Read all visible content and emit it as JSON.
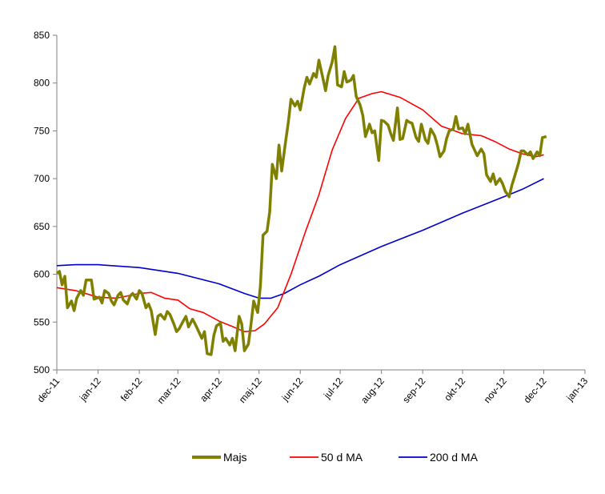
{
  "chart_data": {
    "type": "line",
    "title": "",
    "xlabel": "",
    "ylabel": "",
    "ylim": [
      500,
      850
    ],
    "yticks": [
      500,
      550,
      600,
      650,
      700,
      750,
      800,
      850
    ],
    "xlim": [
      "2011-12-01",
      "2013-01-01"
    ],
    "xticks": [
      {
        "date": "2011-12-01",
        "label": "dec-11"
      },
      {
        "date": "2012-01-01",
        "label": "jan-12"
      },
      {
        "date": "2012-02-01",
        "label": "feb-12"
      },
      {
        "date": "2012-03-01",
        "label": "mar-12"
      },
      {
        "date": "2012-04-01",
        "label": "apr-12"
      },
      {
        "date": "2012-05-01",
        "label": "maj-12"
      },
      {
        "date": "2012-06-01",
        "label": "jun-12"
      },
      {
        "date": "2012-07-01",
        "label": "jul-12"
      },
      {
        "date": "2012-08-01",
        "label": "aug-12"
      },
      {
        "date": "2012-09-01",
        "label": "sep-12"
      },
      {
        "date": "2012-10-01",
        "label": "okt-12"
      },
      {
        "date": "2012-11-01",
        "label": "nov-12"
      },
      {
        "date": "2012-12-01",
        "label": "dec-12"
      },
      {
        "date": "2013-01-01",
        "label": "jan-13"
      }
    ],
    "grid": false,
    "legend": "bottom",
    "series": [
      {
        "name": "Majs",
        "color": "#808000",
        "points": [
          [
            "2011-12-01",
            601
          ],
          [
            "2011-12-03",
            603
          ],
          [
            "2011-12-05",
            589
          ],
          [
            "2011-12-07",
            598
          ],
          [
            "2011-12-09",
            565
          ],
          [
            "2011-12-12",
            572
          ],
          [
            "2011-12-14",
            562
          ],
          [
            "2011-12-16",
            575
          ],
          [
            "2011-12-19",
            583
          ],
          [
            "2011-12-21",
            578
          ],
          [
            "2011-12-23",
            594
          ],
          [
            "2011-12-27",
            594
          ],
          [
            "2011-12-29",
            574
          ],
          [
            "2012-01-02",
            576
          ],
          [
            "2012-01-04",
            570
          ],
          [
            "2012-01-06",
            583
          ],
          [
            "2012-01-09",
            580
          ],
          [
            "2012-01-11",
            572
          ],
          [
            "2012-01-13",
            568
          ],
          [
            "2012-01-16",
            578
          ],
          [
            "2012-01-18",
            581
          ],
          [
            "2012-01-20",
            573
          ],
          [
            "2012-01-23",
            569
          ],
          [
            "2012-01-25",
            577
          ],
          [
            "2012-01-27",
            580
          ],
          [
            "2012-01-30",
            574
          ],
          [
            "2012-02-01",
            583
          ],
          [
            "2012-02-03",
            580
          ],
          [
            "2012-02-06",
            565
          ],
          [
            "2012-02-08",
            569
          ],
          [
            "2012-02-10",
            562
          ],
          [
            "2012-02-13",
            537
          ],
          [
            "2012-02-15",
            556
          ],
          [
            "2012-02-17",
            558
          ],
          [
            "2012-02-20",
            553
          ],
          [
            "2012-02-22",
            561
          ],
          [
            "2012-02-24",
            558
          ],
          [
            "2012-02-27",
            548
          ],
          [
            "2012-02-29",
            540
          ],
          [
            "2012-03-02",
            543
          ],
          [
            "2012-03-05",
            551
          ],
          [
            "2012-03-07",
            556
          ],
          [
            "2012-03-09",
            545
          ],
          [
            "2012-03-12",
            553
          ],
          [
            "2012-03-14",
            548
          ],
          [
            "2012-03-16",
            542
          ],
          [
            "2012-03-19",
            533
          ],
          [
            "2012-03-21",
            540
          ],
          [
            "2012-03-23",
            517
          ],
          [
            "2012-03-26",
            516
          ],
          [
            "2012-03-28",
            536
          ],
          [
            "2012-03-30",
            546
          ],
          [
            "2012-04-02",
            549
          ],
          [
            "2012-04-04",
            530
          ],
          [
            "2012-04-06",
            533
          ],
          [
            "2012-04-09",
            526
          ],
          [
            "2012-04-11",
            533
          ],
          [
            "2012-04-13",
            520
          ],
          [
            "2012-04-16",
            556
          ],
          [
            "2012-04-18",
            548
          ],
          [
            "2012-04-20",
            520
          ],
          [
            "2012-04-23",
            527
          ],
          [
            "2012-04-25",
            548
          ],
          [
            "2012-04-27",
            572
          ],
          [
            "2012-04-30",
            560
          ],
          [
            "2012-05-02",
            588
          ],
          [
            "2012-05-04",
            641
          ],
          [
            "2012-05-07",
            645
          ],
          [
            "2012-05-09",
            665
          ],
          [
            "2012-05-11",
            715
          ],
          [
            "2012-05-14",
            700
          ],
          [
            "2012-05-16",
            735
          ],
          [
            "2012-05-18",
            708
          ],
          [
            "2012-05-21",
            739
          ],
          [
            "2012-05-23",
            759
          ],
          [
            "2012-05-25",
            783
          ],
          [
            "2012-05-28",
            776
          ],
          [
            "2012-05-30",
            781
          ],
          [
            "2012-06-01",
            772
          ],
          [
            "2012-06-04",
            795
          ],
          [
            "2012-06-06",
            806
          ],
          [
            "2012-06-08",
            799
          ],
          [
            "2012-06-11",
            810
          ],
          [
            "2012-06-13",
            806
          ],
          [
            "2012-06-15",
            824
          ],
          [
            "2012-06-18",
            805
          ],
          [
            "2012-06-20",
            792
          ],
          [
            "2012-06-22",
            808
          ],
          [
            "2012-06-25",
            822
          ],
          [
            "2012-06-27",
            838
          ],
          [
            "2012-06-29",
            798
          ],
          [
            "2012-07-02",
            796
          ],
          [
            "2012-07-04",
            812
          ],
          [
            "2012-07-06",
            801
          ],
          [
            "2012-07-09",
            803
          ],
          [
            "2012-07-11",
            808
          ],
          [
            "2012-07-13",
            786
          ],
          [
            "2012-07-16",
            777
          ],
          [
            "2012-07-18",
            766
          ],
          [
            "2012-07-20",
            744
          ],
          [
            "2012-07-23",
            757
          ],
          [
            "2012-07-25",
            748
          ],
          [
            "2012-07-27",
            750
          ],
          [
            "2012-07-30",
            719
          ],
          [
            "2012-08-01",
            761
          ],
          [
            "2012-08-03",
            760
          ],
          [
            "2012-08-06",
            756
          ],
          [
            "2012-08-08",
            747
          ],
          [
            "2012-08-10",
            740
          ],
          [
            "2012-08-13",
            774
          ],
          [
            "2012-08-15",
            741
          ],
          [
            "2012-08-17",
            742
          ],
          [
            "2012-08-20",
            761
          ],
          [
            "2012-08-22",
            759
          ],
          [
            "2012-08-24",
            758
          ],
          [
            "2012-08-27",
            743
          ],
          [
            "2012-08-29",
            739
          ],
          [
            "2012-08-31",
            757
          ],
          [
            "2012-09-03",
            741
          ],
          [
            "2012-09-05",
            737
          ],
          [
            "2012-09-07",
            752
          ],
          [
            "2012-09-10",
            745
          ],
          [
            "2012-09-12",
            735
          ],
          [
            "2012-09-14",
            723
          ],
          [
            "2012-09-17",
            729
          ],
          [
            "2012-09-19",
            742
          ],
          [
            "2012-09-21",
            750
          ],
          [
            "2012-09-24",
            752
          ],
          [
            "2012-09-26",
            765
          ],
          [
            "2012-09-28",
            752
          ],
          [
            "2012-10-01",
            753
          ],
          [
            "2012-10-03",
            747
          ],
          [
            "2012-10-05",
            757
          ],
          [
            "2012-10-08",
            736
          ],
          [
            "2012-10-10",
            730
          ],
          [
            "2012-10-12",
            724
          ],
          [
            "2012-10-15",
            731
          ],
          [
            "2012-10-17",
            726
          ],
          [
            "2012-10-19",
            704
          ],
          [
            "2012-10-22",
            697
          ],
          [
            "2012-10-24",
            705
          ],
          [
            "2012-10-26",
            694
          ],
          [
            "2012-10-29",
            700
          ],
          [
            "2012-10-31",
            695
          ],
          [
            "2012-11-02",
            687
          ],
          [
            "2012-11-05",
            681
          ],
          [
            "2012-11-07",
            693
          ],
          [
            "2012-11-09",
            702
          ],
          [
            "2012-11-12",
            716
          ],
          [
            "2012-11-14",
            729
          ],
          [
            "2012-11-16",
            729
          ],
          [
            "2012-11-19",
            725
          ],
          [
            "2012-11-21",
            728
          ],
          [
            "2012-11-23",
            721
          ],
          [
            "2012-11-26",
            728
          ],
          [
            "2012-11-28",
            724
          ],
          [
            "2012-11-30",
            743
          ],
          [
            "2012-12-03",
            744
          ]
        ]
      },
      {
        "name": "50 d MA",
        "color": "#ff0000",
        "points": [
          [
            "2011-12-01",
            586
          ],
          [
            "2011-12-15",
            583
          ],
          [
            "2012-01-01",
            576
          ],
          [
            "2012-01-15",
            575
          ],
          [
            "2012-02-01",
            580
          ],
          [
            "2012-02-10",
            581
          ],
          [
            "2012-02-20",
            575
          ],
          [
            "2012-03-01",
            573
          ],
          [
            "2012-03-10",
            564
          ],
          [
            "2012-03-20",
            560
          ],
          [
            "2012-04-01",
            551
          ],
          [
            "2012-04-10",
            546
          ],
          [
            "2012-04-20",
            540
          ],
          [
            "2012-04-28",
            541
          ],
          [
            "2012-05-05",
            548
          ],
          [
            "2012-05-15",
            565
          ],
          [
            "2012-05-25",
            600
          ],
          [
            "2012-06-05",
            645
          ],
          [
            "2012-06-15",
            683
          ],
          [
            "2012-06-25",
            730
          ],
          [
            "2012-07-05",
            763
          ],
          [
            "2012-07-15",
            784
          ],
          [
            "2012-07-25",
            789
          ],
          [
            "2012-08-01",
            791
          ],
          [
            "2012-08-15",
            785
          ],
          [
            "2012-09-01",
            772
          ],
          [
            "2012-09-15",
            755
          ],
          [
            "2012-10-01",
            747
          ],
          [
            "2012-10-15",
            745
          ],
          [
            "2012-10-25",
            739
          ],
          [
            "2012-11-05",
            731
          ],
          [
            "2012-11-15",
            726
          ],
          [
            "2012-11-25",
            723
          ],
          [
            "2012-12-01",
            725
          ]
        ]
      },
      {
        "name": "200 d MA",
        "color": "#0000cc",
        "points": [
          [
            "2011-12-01",
            609
          ],
          [
            "2011-12-15",
            610
          ],
          [
            "2012-01-01",
            610
          ],
          [
            "2012-02-01",
            607
          ],
          [
            "2012-03-01",
            601
          ],
          [
            "2012-04-01",
            590
          ],
          [
            "2012-04-20",
            580
          ],
          [
            "2012-05-01",
            575
          ],
          [
            "2012-05-10",
            575
          ],
          [
            "2012-05-20",
            580
          ],
          [
            "2012-06-01",
            589
          ],
          [
            "2012-06-15",
            598
          ],
          [
            "2012-07-01",
            610
          ],
          [
            "2012-08-01",
            629
          ],
          [
            "2012-09-01",
            646
          ],
          [
            "2012-10-01",
            664
          ],
          [
            "2012-11-01",
            681
          ],
          [
            "2012-11-15",
            689
          ],
          [
            "2012-12-01",
            700
          ]
        ]
      }
    ]
  }
}
